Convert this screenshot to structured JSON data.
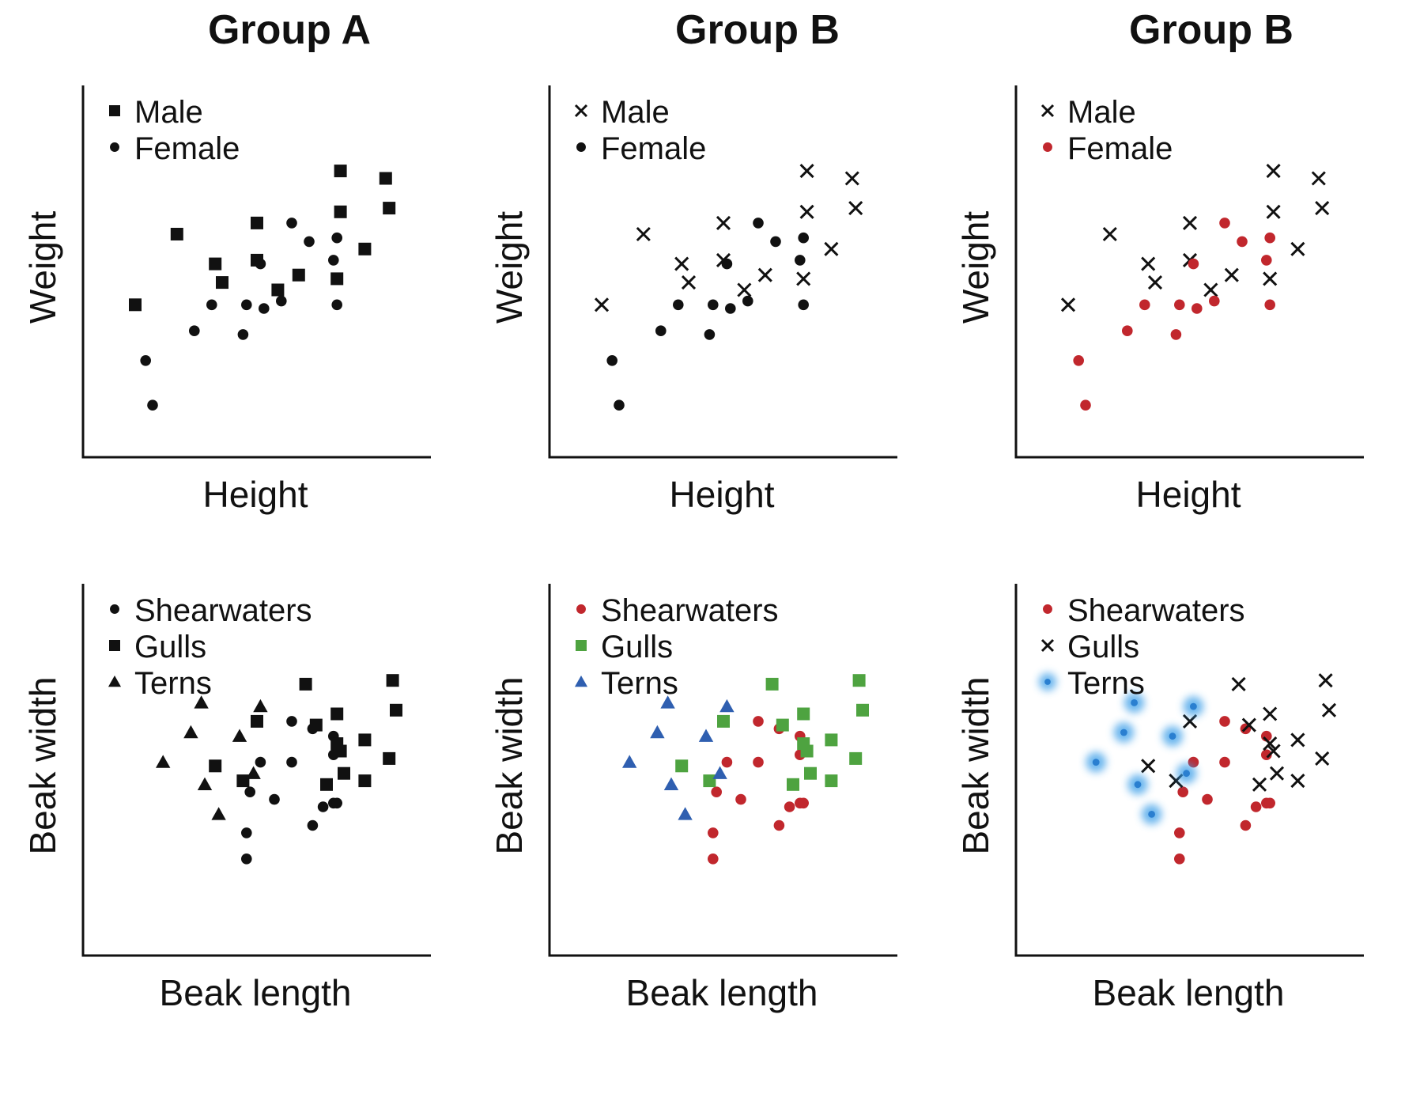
{
  "columns": [
    {
      "title": "Group A"
    },
    {
      "title": "Group B"
    },
    {
      "title": "Group B"
    }
  ],
  "colors": {
    "black": "#111111",
    "red": "#c1272d",
    "green": "#4ea340",
    "blue": "#2f5fb0",
    "glow": "#3a9ee8"
  },
  "chart_data": [
    {
      "type": "scatter",
      "row": 0,
      "col": 0,
      "xlabel": "Height",
      "ylabel": "Weight",
      "xlim": [
        0,
        100
      ],
      "ylim": [
        0,
        100
      ],
      "series": [
        {
          "name": "Male",
          "marker": "square",
          "color": "#111111",
          "points": [
            [
              27,
              60
            ],
            [
              15,
              41
            ],
            [
              38,
              52
            ],
            [
              50,
              63
            ],
            [
              40,
              47
            ],
            [
              50,
              53
            ],
            [
              56,
              45
            ],
            [
              62,
              49
            ],
            [
              74,
              66
            ],
            [
              81,
              56
            ],
            [
              73,
              48
            ],
            [
              74,
              77
            ],
            [
              87,
              75
            ],
            [
              88,
              67
            ]
          ]
        },
        {
          "name": "Female",
          "marker": "circle",
          "color": "#111111",
          "points": [
            [
              18,
              26
            ],
            [
              20,
              14
            ],
            [
              32,
              34
            ],
            [
              37,
              41
            ],
            [
              46,
              33
            ],
            [
              47,
              41
            ],
            [
              51,
              52
            ],
            [
              52,
              40
            ],
            [
              57,
              42
            ],
            [
              60,
              63
            ],
            [
              65,
              58
            ],
            [
              73,
              59
            ],
            [
              72,
              53
            ],
            [
              73,
              41
            ]
          ]
        }
      ]
    },
    {
      "type": "scatter",
      "row": 0,
      "col": 1,
      "xlabel": "Height",
      "ylabel": "Weight",
      "xlim": [
        0,
        100
      ],
      "ylim": [
        0,
        100
      ],
      "series": [
        {
          "name": "Male",
          "marker": "x",
          "color": "#111111",
          "points": [
            [
              27,
              60
            ],
            [
              15,
              41
            ],
            [
              38,
              52
            ],
            [
              50,
              63
            ],
            [
              40,
              47
            ],
            [
              50,
              53
            ],
            [
              56,
              45
            ],
            [
              62,
              49
            ],
            [
              74,
              66
            ],
            [
              81,
              56
            ],
            [
              73,
              48
            ],
            [
              74,
              77
            ],
            [
              87,
              75
            ],
            [
              88,
              67
            ]
          ]
        },
        {
          "name": "Female",
          "marker": "circle",
          "color": "#111111",
          "points": [
            [
              18,
              26
            ],
            [
              20,
              14
            ],
            [
              32,
              34
            ],
            [
              37,
              41
            ],
            [
              46,
              33
            ],
            [
              47,
              41
            ],
            [
              51,
              52
            ],
            [
              52,
              40
            ],
            [
              57,
              42
            ],
            [
              60,
              63
            ],
            [
              65,
              58
            ],
            [
              73,
              59
            ],
            [
              72,
              53
            ],
            [
              73,
              41
            ]
          ]
        }
      ]
    },
    {
      "type": "scatter",
      "row": 0,
      "col": 2,
      "xlabel": "Height",
      "ylabel": "Weight",
      "xlim": [
        0,
        100
      ],
      "ylim": [
        0,
        100
      ],
      "series": [
        {
          "name": "Male",
          "marker": "x",
          "color": "#111111",
          "points": [
            [
              27,
              60
            ],
            [
              15,
              41
            ],
            [
              38,
              52
            ],
            [
              50,
              63
            ],
            [
              40,
              47
            ],
            [
              50,
              53
            ],
            [
              56,
              45
            ],
            [
              62,
              49
            ],
            [
              74,
              66
            ],
            [
              81,
              56
            ],
            [
              73,
              48
            ],
            [
              74,
              77
            ],
            [
              87,
              75
            ],
            [
              88,
              67
            ]
          ]
        },
        {
          "name": "Female",
          "marker": "circle",
          "color": "#c1272d",
          "points": [
            [
              18,
              26
            ],
            [
              20,
              14
            ],
            [
              32,
              34
            ],
            [
              37,
              41
            ],
            [
              46,
              33
            ],
            [
              47,
              41
            ],
            [
              51,
              52
            ],
            [
              52,
              40
            ],
            [
              57,
              42
            ],
            [
              60,
              63
            ],
            [
              65,
              58
            ],
            [
              73,
              59
            ],
            [
              72,
              53
            ],
            [
              73,
              41
            ]
          ]
        }
      ]
    },
    {
      "type": "scatter",
      "row": 1,
      "col": 0,
      "xlabel": "Beak length",
      "ylabel": "Beak width",
      "xlim": [
        0,
        100
      ],
      "ylim": [
        0,
        100
      ],
      "series": [
        {
          "name": "Shearwaters",
          "marker": "circle",
          "color": "#111111",
          "points": [
            [
              48,
              44
            ],
            [
              51,
              52
            ],
            [
              60,
              52
            ],
            [
              60,
              63
            ],
            [
              66,
              61
            ],
            [
              72,
              59
            ],
            [
              72,
              54
            ],
            [
              47,
              33
            ],
            [
              55,
              42
            ],
            [
              69,
              40
            ],
            [
              72,
              41
            ],
            [
              47,
              26
            ],
            [
              66,
              35
            ],
            [
              73,
              41
            ]
          ]
        },
        {
          "name": "Gulls",
          "marker": "square",
          "color": "#111111",
          "points": [
            [
              38,
              51
            ],
            [
              46,
              47
            ],
            [
              50,
              63
            ],
            [
              64,
              73
            ],
            [
              67,
              62
            ],
            [
              73,
              65
            ],
            [
              73,
              57
            ],
            [
              74,
              55
            ],
            [
              81,
              58
            ],
            [
              81,
              47
            ],
            [
              89,
              74
            ],
            [
              90,
              66
            ],
            [
              88,
              53
            ],
            [
              75,
              49
            ],
            [
              70,
              46
            ]
          ]
        },
        {
          "name": "Terns",
          "marker": "triangle",
          "color": "#111111",
          "points": [
            [
              34,
              68
            ],
            [
              51,
              67
            ],
            [
              31,
              60
            ],
            [
              45,
              59
            ],
            [
              23,
              52
            ],
            [
              35,
              46
            ],
            [
              49,
              49
            ],
            [
              39,
              38
            ]
          ]
        }
      ]
    },
    {
      "type": "scatter",
      "row": 1,
      "col": 1,
      "xlabel": "Beak length",
      "ylabel": "Beak width",
      "xlim": [
        0,
        100
      ],
      "ylim": [
        0,
        100
      ],
      "series": [
        {
          "name": "Shearwaters",
          "marker": "circle",
          "color": "#c1272d",
          "points": [
            [
              48,
              44
            ],
            [
              51,
              52
            ],
            [
              60,
              52
            ],
            [
              60,
              63
            ],
            [
              66,
              61
            ],
            [
              72,
              59
            ],
            [
              72,
              54
            ],
            [
              47,
              33
            ],
            [
              55,
              42
            ],
            [
              69,
              40
            ],
            [
              72,
              41
            ],
            [
              47,
              26
            ],
            [
              66,
              35
            ],
            [
              73,
              41
            ]
          ]
        },
        {
          "name": "Gulls",
          "marker": "square",
          "color": "#4ea340",
          "points": [
            [
              38,
              51
            ],
            [
              46,
              47
            ],
            [
              50,
              63
            ],
            [
              64,
              73
            ],
            [
              67,
              62
            ],
            [
              73,
              65
            ],
            [
              73,
              57
            ],
            [
              74,
              55
            ],
            [
              81,
              58
            ],
            [
              81,
              47
            ],
            [
              89,
              74
            ],
            [
              90,
              66
            ],
            [
              88,
              53
            ],
            [
              75,
              49
            ],
            [
              70,
              46
            ]
          ]
        },
        {
          "name": "Terns",
          "marker": "triangle",
          "color": "#2f5fb0",
          "points": [
            [
              34,
              68
            ],
            [
              51,
              67
            ],
            [
              31,
              60
            ],
            [
              45,
              59
            ],
            [
              23,
              52
            ],
            [
              35,
              46
            ],
            [
              49,
              49
            ],
            [
              39,
              38
            ]
          ]
        }
      ]
    },
    {
      "type": "scatter",
      "row": 1,
      "col": 2,
      "xlabel": "Beak length",
      "ylabel": "Beak width",
      "xlim": [
        0,
        100
      ],
      "ylim": [
        0,
        100
      ],
      "series": [
        {
          "name": "Shearwaters",
          "marker": "circle",
          "color": "#c1272d",
          "points": [
            [
              48,
              44
            ],
            [
              51,
              52
            ],
            [
              60,
              52
            ],
            [
              60,
              63
            ],
            [
              66,
              61
            ],
            [
              72,
              59
            ],
            [
              72,
              54
            ],
            [
              47,
              33
            ],
            [
              55,
              42
            ],
            [
              69,
              40
            ],
            [
              72,
              41
            ],
            [
              47,
              26
            ],
            [
              66,
              35
            ],
            [
              73,
              41
            ]
          ]
        },
        {
          "name": "Gulls",
          "marker": "x",
          "color": "#111111",
          "points": [
            [
              38,
              51
            ],
            [
              46,
              47
            ],
            [
              50,
              63
            ],
            [
              64,
              73
            ],
            [
              67,
              62
            ],
            [
              73,
              65
            ],
            [
              73,
              57
            ],
            [
              74,
              55
            ],
            [
              81,
              58
            ],
            [
              81,
              47
            ],
            [
              89,
              74
            ],
            [
              90,
              66
            ],
            [
              88,
              53
            ],
            [
              75,
              49
            ],
            [
              70,
              46
            ]
          ]
        },
        {
          "name": "Terns",
          "marker": "glow",
          "color": "#3a9ee8",
          "points": [
            [
              34,
              68
            ],
            [
              51,
              67
            ],
            [
              31,
              60
            ],
            [
              45,
              59
            ],
            [
              23,
              52
            ],
            [
              35,
              46
            ],
            [
              49,
              49
            ],
            [
              39,
              38
            ]
          ]
        }
      ]
    }
  ]
}
